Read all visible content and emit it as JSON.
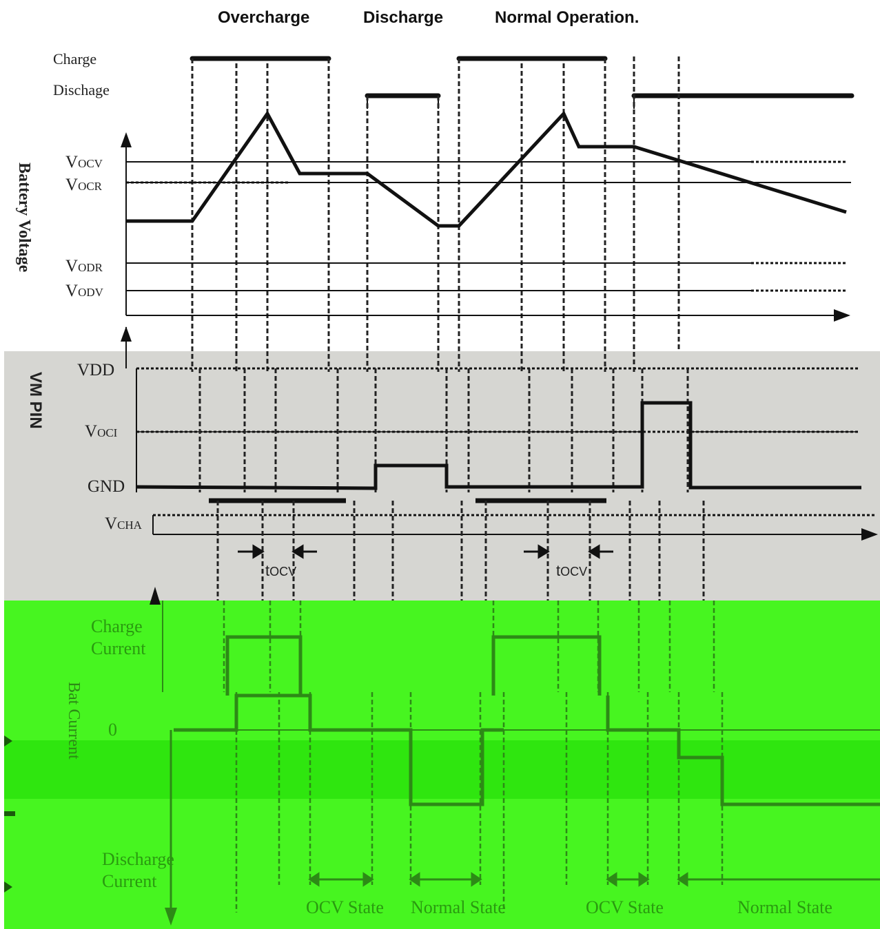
{
  "header": {
    "col1": "Overcharge",
    "col2": "Discharge",
    "col3": "Normal Operation."
  },
  "state_rows": {
    "charge": "Charge",
    "discharge": "Dischage"
  },
  "battery_panel": {
    "axis_label": "Battery Voltage",
    "levels": {
      "vocv_main": "V",
      "vocv_sub": "OCV",
      "vocr_main": "V",
      "vocr_sub": "OCR",
      "vodr_main": "V",
      "vodr_sub": "ODR",
      "vodv_main": "V",
      "vodv_sub": "ODV"
    }
  },
  "vm_panel": {
    "axis_label": "VM PIN",
    "vdd": "VDD",
    "voci_main": "V",
    "voci_sub": "OCI",
    "gnd": "GND",
    "vcha_main": "V",
    "vcha_sub": "CHA",
    "tocv_1_main": "t",
    "tocv_1_sub": "OCV",
    "tocv_2_main": "t",
    "tocv_2_sub": "OCV"
  },
  "current_panel": {
    "axis_label": "Bat Current",
    "charge_current": [
      "Charge",
      "Current"
    ],
    "zero": "0",
    "discharge_current": [
      "Discharge",
      "Current"
    ],
    "states": [
      "OCV State",
      "Normal State",
      "OCV State",
      "Normal State"
    ]
  },
  "colors": {
    "green_bg": "#47f520",
    "green_band": "#2fe60f",
    "gray_bg": "#d6d6d2",
    "trace": "#111111",
    "green_trace": "#2d8a16"
  }
}
